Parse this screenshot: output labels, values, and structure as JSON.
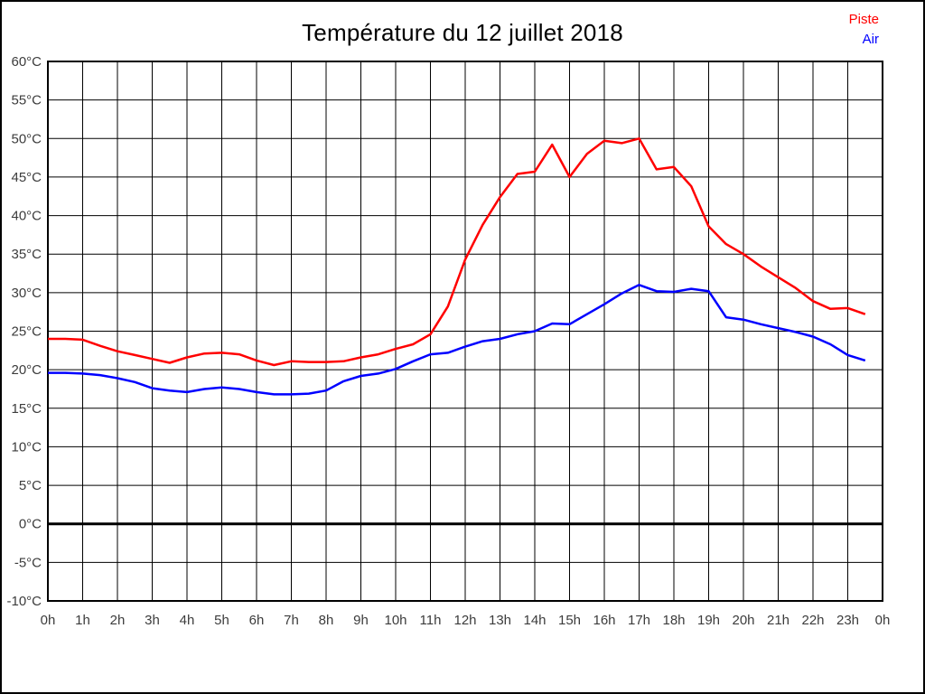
{
  "title": "Température du 12 juillet 2018",
  "legend": [
    {
      "label": "Piste",
      "color": "#ff0000"
    },
    {
      "label": "Air",
      "color": "#0000ff"
    }
  ],
  "colors": {
    "background": "#ffffff",
    "grid": "#000000",
    "frame": "#000000",
    "zero_line": "#000000",
    "tick_label": "#3c3c3c",
    "title": "#000000"
  },
  "chart_data": {
    "type": "line",
    "title": "Température du 12 juillet 2018",
    "xlabel": "",
    "ylabel": "",
    "xlim": [
      0,
      24
    ],
    "ylim": [
      -10,
      60
    ],
    "grid": true,
    "zero_line_bold": true,
    "legend_position": "top-right",
    "x_unit": "hours",
    "y_unit": "°C",
    "x_tick_labels": [
      "0h",
      "1h",
      "2h",
      "3h",
      "4h",
      "5h",
      "6h",
      "7h",
      "8h",
      "9h",
      "10h",
      "11h",
      "12h",
      "13h",
      "14h",
      "15h",
      "16h",
      "17h",
      "18h",
      "19h",
      "20h",
      "21h",
      "22h",
      "23h",
      "0h"
    ],
    "y_tick_labels": [
      "60°C",
      "55°C",
      "50°C",
      "45°C",
      "40°C",
      "35°C",
      "30°C",
      "25°C",
      "20°C",
      "15°C",
      "10°C",
      "5°C",
      "0°C",
      "-5°C",
      "-10°C"
    ],
    "y_tick_values": [
      60,
      55,
      50,
      45,
      40,
      35,
      30,
      25,
      20,
      15,
      10,
      5,
      0,
      -5,
      -10
    ],
    "x": [
      0,
      0.5,
      1,
      1.5,
      2,
      2.5,
      3,
      3.5,
      4,
      4.5,
      5,
      5.5,
      6,
      6.5,
      7,
      7.5,
      8,
      8.5,
      9,
      9.5,
      10,
      10.5,
      11,
      11.5,
      12,
      12.5,
      13,
      13.5,
      14,
      14.5,
      15,
      15.5,
      16,
      16.5,
      17,
      17.5,
      18,
      18.5,
      19,
      19.5,
      20,
      20.5,
      21,
      21.5,
      22,
      22.5,
      23,
      23.5
    ],
    "series": [
      {
        "name": "Piste",
        "color": "#ff0000",
        "values": [
          24.0,
          24.0,
          23.9,
          23.1,
          22.4,
          21.9,
          21.4,
          20.9,
          21.6,
          22.1,
          22.2,
          22.0,
          21.2,
          20.6,
          21.1,
          21.0,
          21.0,
          21.1,
          21.6,
          22.0,
          22.7,
          23.3,
          24.6,
          28.2,
          34.3,
          38.8,
          42.4,
          45.4,
          45.7,
          49.2,
          45.0,
          48.0,
          49.7,
          49.4,
          50.0,
          46.0,
          46.3,
          43.8,
          38.6,
          36.3,
          35.0,
          33.4,
          32.0,
          30.6,
          28.9,
          27.9,
          28.0,
          27.2
        ]
      },
      {
        "name": "Air",
        "color": "#0000ff",
        "values": [
          19.6,
          19.6,
          19.5,
          19.3,
          18.9,
          18.4,
          17.6,
          17.3,
          17.1,
          17.5,
          17.7,
          17.5,
          17.1,
          16.8,
          16.8,
          16.9,
          17.3,
          18.5,
          19.2,
          19.5,
          20.1,
          21.1,
          22.0,
          22.2,
          23.0,
          23.7,
          24.0,
          24.6,
          25.0,
          26.0,
          25.9,
          27.2,
          28.5,
          29.9,
          31.0,
          30.2,
          30.1,
          30.5,
          30.2,
          26.8,
          26.5,
          25.9,
          25.4,
          24.9,
          24.3,
          23.3,
          21.9,
          21.2
        ]
      }
    ]
  }
}
